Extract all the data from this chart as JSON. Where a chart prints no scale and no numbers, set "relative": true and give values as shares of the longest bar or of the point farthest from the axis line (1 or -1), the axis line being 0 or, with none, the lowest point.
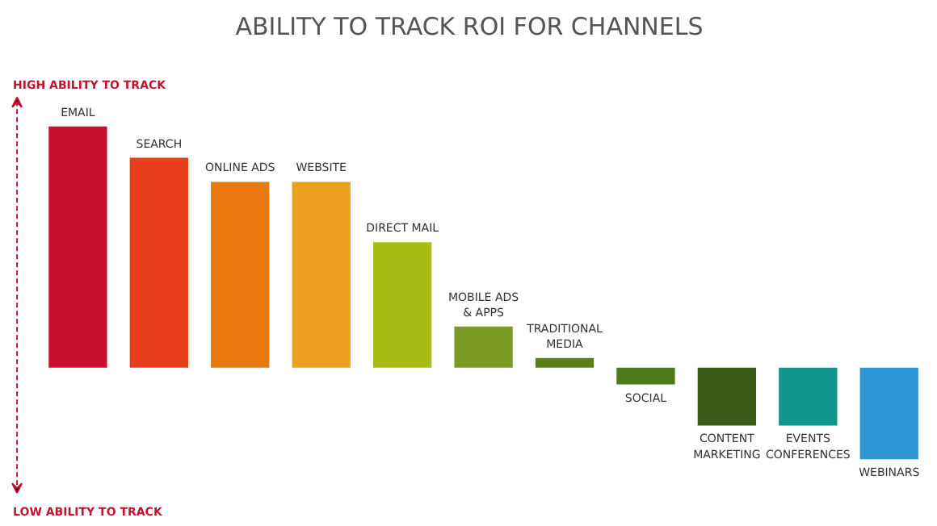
{
  "chart_data": {
    "type": "bar",
    "title": "ABILITY TO TRACK ROI FOR CHANNELS",
    "relative": true,
    "grid": false,
    "categories": [
      "EMAIL",
      "SEARCH",
      "ONLINE ADS",
      "WEBSITE",
      "DIRECT MAIL",
      "MOBILE ADS\n& APPS",
      "TRADITIONAL\nMEDIA",
      "SOCIAL",
      "CONTENT\nMARKETING",
      "EVENTS\nCONFERENCES",
      "WEBINARS"
    ],
    "values": [
      1,
      0.87,
      0.77,
      0.77,
      0.52,
      0.17,
      0.04,
      -0.07,
      -0.24,
      -0.24,
      -0.38
    ],
    "colors": [
      "#c8102e",
      "#e8401c",
      "#e9780f",
      "#eda020",
      "#a6bb14",
      "#7b9a24",
      "#5e7d1c",
      "#4e7a1c",
      "#3d5a16",
      "#12968c",
      "#2e95d4"
    ],
    "annotations": [
      "HIGH ABILITY TO TRACK",
      "LOW ABILITY TO TRACK"
    ]
  }
}
